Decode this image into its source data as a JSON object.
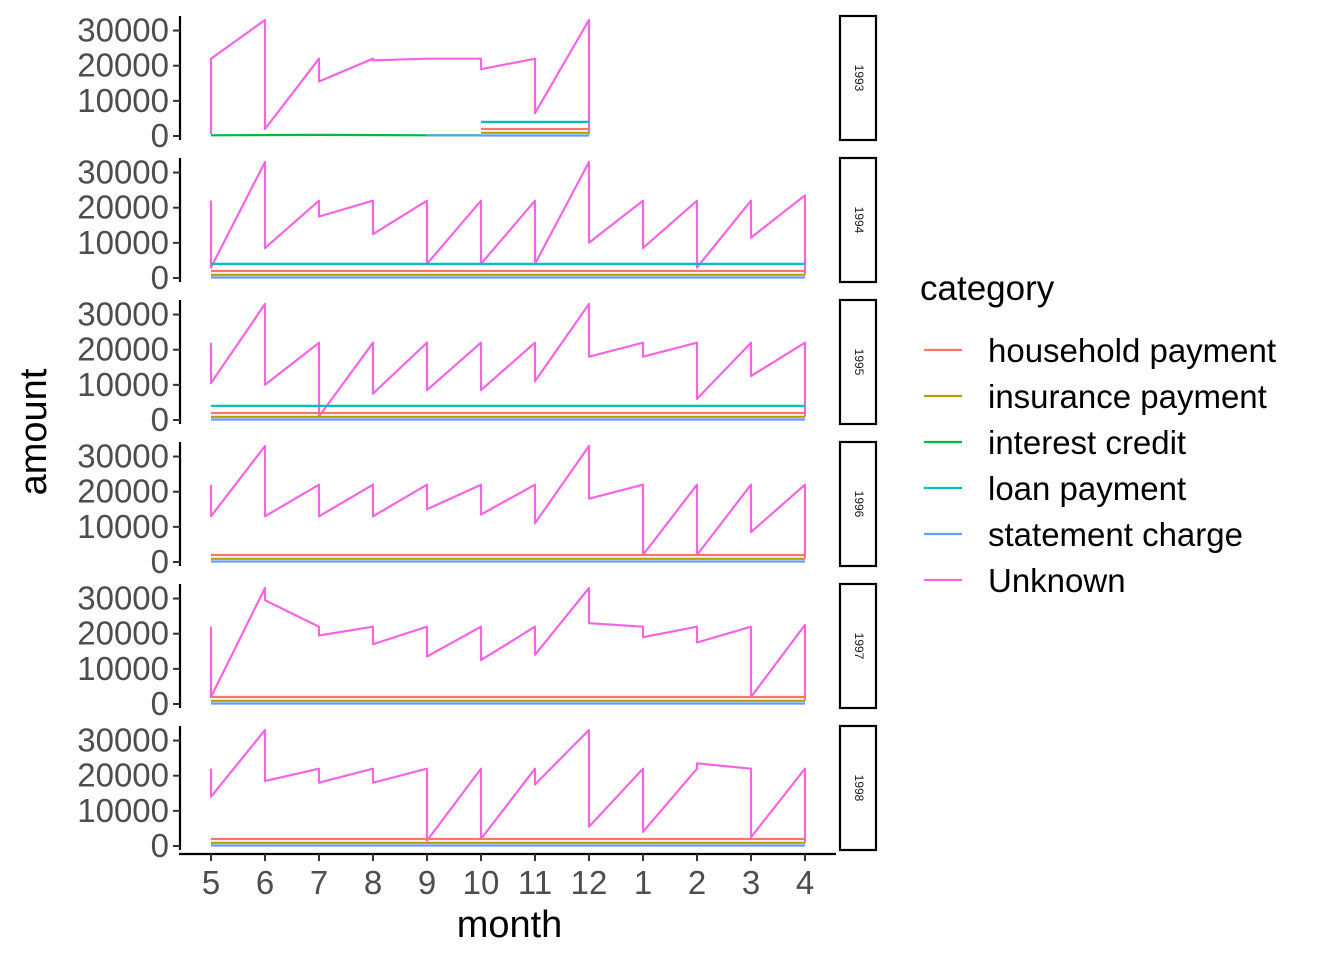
{
  "chart_data": {
    "type": "line",
    "xlabel": "month",
    "ylabel": "amount",
    "x_tick_labels": [
      "5",
      "6",
      "7",
      "8",
      "9",
      "10",
      "11",
      "12",
      "1",
      "2",
      "3",
      "4"
    ],
    "y_ticks": [
      0,
      10000,
      20000,
      30000
    ],
    "ylim": [
      0,
      33000
    ],
    "facet_by": "year",
    "legend": {
      "title": "category",
      "placement": "right",
      "entries": [
        {
          "name": "household payment",
          "color": "#F8766D"
        },
        {
          "name": "insurance payment",
          "color": "#B79F00"
        },
        {
          "name": "interest credit",
          "color": "#00BA38"
        },
        {
          "name": "loan payment",
          "color": "#00BFC4"
        },
        {
          "name": "statement charge",
          "color": "#619CFF"
        },
        {
          "name": "Unknown",
          "color": "#F564E3"
        }
      ]
    },
    "panels": [
      {
        "strip": "1993",
        "series": [
          {
            "name": "Unknown",
            "points": [
              [
                0,
                500
              ],
              [
                0,
                22000
              ],
              [
                1,
                33000
              ],
              [
                1,
                2000
              ],
              [
                2,
                22000
              ],
              [
                2,
                15500
              ],
              [
                3,
                22000
              ],
              [
                3,
                21500
              ],
              [
                4,
                22000
              ],
              [
                5,
                22000
              ],
              [
                5,
                19000
              ],
              [
                6,
                22000
              ],
              [
                6,
                6500
              ],
              [
                7,
                33000
              ],
              [
                7,
                500
              ]
            ]
          },
          {
            "name": "interest credit",
            "points": [
              [
                0,
                200
              ],
              [
                2,
                300
              ],
              [
                4,
                200
              ],
              [
                5,
                200
              ]
            ]
          },
          {
            "name": "statement charge",
            "points": [
              [
                4,
                200
              ],
              [
                5,
                200
              ]
            ]
          },
          {
            "name": "loan payment",
            "points": [
              [
                5,
                4000
              ],
              [
                7,
                4000
              ]
            ]
          },
          {
            "name": "household payment",
            "points": [
              [
                5,
                2000
              ],
              [
                7,
                2000
              ]
            ]
          },
          {
            "name": "insurance payment",
            "points": [
              [
                5,
                900
              ],
              [
                7,
                900
              ]
            ]
          },
          {
            "name": "statement charge",
            "points": [
              [
                5,
                150
              ],
              [
                7,
                150
              ]
            ]
          }
        ]
      },
      {
        "strip": "1994",
        "series": [
          {
            "name": "Unknown",
            "points": [
              [
                0,
                22000
              ],
              [
                0,
                3000
              ],
              [
                1,
                33000
              ],
              [
                1,
                8500
              ],
              [
                2,
                22000
              ],
              [
                2,
                17500
              ],
              [
                3,
                22000
              ],
              [
                3,
                12500
              ],
              [
                4,
                22000
              ],
              [
                4,
                4000
              ],
              [
                5,
                22000
              ],
              [
                5,
                4000
              ],
              [
                6,
                22000
              ],
              [
                6,
                4000
              ],
              [
                7,
                33000
              ],
              [
                7,
                10000
              ],
              [
                8,
                22000
              ],
              [
                8,
                8500
              ],
              [
                9,
                22000
              ],
              [
                9,
                3000
              ],
              [
                10,
                22000
              ],
              [
                10,
                11500
              ],
              [
                11,
                23500
              ],
              [
                11,
                1000
              ]
            ]
          },
          {
            "name": "loan payment",
            "points": [
              [
                0,
                4000
              ],
              [
                11,
                4000
              ]
            ]
          },
          {
            "name": "household payment",
            "points": [
              [
                0,
                2000
              ],
              [
                11,
                2000
              ]
            ]
          },
          {
            "name": "insurance payment",
            "points": [
              [
                0,
                900
              ],
              [
                11,
                900
              ]
            ]
          },
          {
            "name": "statement charge",
            "points": [
              [
                0,
                150
              ],
              [
                11,
                150
              ]
            ]
          }
        ]
      },
      {
        "strip": "1995",
        "series": [
          {
            "name": "Unknown",
            "points": [
              [
                0,
                22000
              ],
              [
                0,
                10500
              ],
              [
                1,
                33000
              ],
              [
                1,
                10000
              ],
              [
                2,
                22000
              ],
              [
                2,
                1000
              ],
              [
                3,
                22000
              ],
              [
                3,
                7500
              ],
              [
                4,
                22000
              ],
              [
                4,
                8500
              ],
              [
                5,
                22000
              ],
              [
                5,
                8500
              ],
              [
                6,
                22000
              ],
              [
                6,
                11000
              ],
              [
                7,
                33000
              ],
              [
                7,
                18000
              ],
              [
                8,
                22000
              ],
              [
                8,
                18000
              ],
              [
                9,
                22000
              ],
              [
                9,
                6000
              ],
              [
                10,
                22000
              ],
              [
                10,
                12500
              ],
              [
                11,
                22000
              ],
              [
                11,
                1000
              ]
            ]
          },
          {
            "name": "loan payment",
            "points": [
              [
                0,
                4000
              ],
              [
                11,
                4000
              ]
            ]
          },
          {
            "name": "household payment",
            "points": [
              [
                0,
                2000
              ],
              [
                11,
                2000
              ]
            ]
          },
          {
            "name": "insurance payment",
            "points": [
              [
                0,
                900
              ],
              [
                11,
                900
              ]
            ]
          },
          {
            "name": "statement charge",
            "points": [
              [
                0,
                150
              ],
              [
                11,
                150
              ]
            ]
          }
        ]
      },
      {
        "strip": "1996",
        "series": [
          {
            "name": "Unknown",
            "points": [
              [
                0,
                22000
              ],
              [
                0,
                13000
              ],
              [
                1,
                33000
              ],
              [
                1,
                13000
              ],
              [
                2,
                22000
              ],
              [
                2,
                13000
              ],
              [
                3,
                22000
              ],
              [
                3,
                13000
              ],
              [
                4,
                22000
              ],
              [
                4,
                15000
              ],
              [
                5,
                22000
              ],
              [
                5,
                13500
              ],
              [
                6,
                22000
              ],
              [
                6,
                11000
              ],
              [
                7,
                33000
              ],
              [
                7,
                18000
              ],
              [
                8,
                22000
              ],
              [
                8,
                2000
              ],
              [
                9,
                22000
              ],
              [
                9,
                2000
              ],
              [
                10,
                22000
              ],
              [
                10,
                8500
              ],
              [
                11,
                22000
              ],
              [
                11,
                1000
              ]
            ]
          },
          {
            "name": "household payment",
            "points": [
              [
                0,
                2000
              ],
              [
                11,
                2000
              ]
            ]
          },
          {
            "name": "insurance payment",
            "points": [
              [
                0,
                900
              ],
              [
                11,
                900
              ]
            ]
          },
          {
            "name": "statement charge",
            "points": [
              [
                0,
                150
              ],
              [
                11,
                150
              ]
            ]
          }
        ]
      },
      {
        "strip": "1997",
        "series": [
          {
            "name": "Unknown",
            "points": [
              [
                0,
                22000
              ],
              [
                0,
                2000
              ],
              [
                1,
                33000
              ],
              [
                1,
                29500
              ],
              [
                2,
                22000
              ],
              [
                2,
                19500
              ],
              [
                3,
                22000
              ],
              [
                3,
                17000
              ],
              [
                4,
                22000
              ],
              [
                4,
                13500
              ],
              [
                5,
                22000
              ],
              [
                5,
                12500
              ],
              [
                6,
                22000
              ],
              [
                6,
                14000
              ],
              [
                7,
                33000
              ],
              [
                7,
                23000
              ],
              [
                8,
                22000
              ],
              [
                8,
                19000
              ],
              [
                9,
                22000
              ],
              [
                9,
                17500
              ],
              [
                10,
                22000
              ],
              [
                10,
                2000
              ],
              [
                11,
                22500
              ],
              [
                11,
                1000
              ]
            ]
          },
          {
            "name": "household payment",
            "points": [
              [
                0,
                2000
              ],
              [
                11,
                2000
              ]
            ]
          },
          {
            "name": "insurance payment",
            "points": [
              [
                0,
                900
              ],
              [
                11,
                900
              ]
            ]
          },
          {
            "name": "statement charge",
            "points": [
              [
                0,
                150
              ],
              [
                11,
                150
              ]
            ]
          }
        ]
      },
      {
        "strip": "1998",
        "series": [
          {
            "name": "Unknown",
            "points": [
              [
                0,
                22000
              ],
              [
                0,
                14000
              ],
              [
                1,
                33000
              ],
              [
                1,
                18500
              ],
              [
                2,
                22000
              ],
              [
                2,
                18000
              ],
              [
                3,
                22000
              ],
              [
                3,
                18000
              ],
              [
                4,
                22000
              ],
              [
                4,
                1500
              ],
              [
                5,
                22000
              ],
              [
                5,
                2000
              ],
              [
                6,
                22000
              ],
              [
                6,
                17500
              ],
              [
                7,
                33000
              ],
              [
                7,
                5500
              ],
              [
                8,
                22000
              ],
              [
                8,
                4000
              ],
              [
                9,
                22000
              ],
              [
                9,
                23500
              ],
              [
                10,
                22000
              ],
              [
                10,
                2500
              ],
              [
                11,
                22000
              ],
              [
                11,
                1000
              ]
            ]
          },
          {
            "name": "household payment",
            "points": [
              [
                0,
                2000
              ],
              [
                11,
                2000
              ]
            ]
          },
          {
            "name": "insurance payment",
            "points": [
              [
                0,
                900
              ],
              [
                11,
                900
              ]
            ]
          },
          {
            "name": "statement charge",
            "points": [
              [
                0,
                150
              ],
              [
                11,
                150
              ]
            ]
          }
        ]
      }
    ]
  }
}
